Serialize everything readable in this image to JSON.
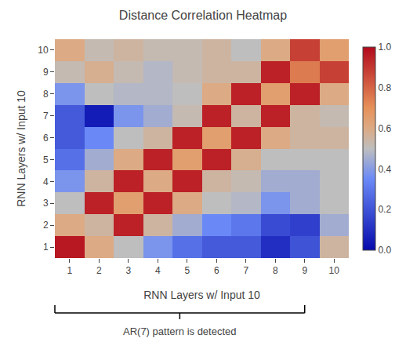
{
  "chart_data": {
    "type": "heatmap",
    "title": "Distance Correlation Heatmap",
    "xlabel": "RNN Layers w/ Input 10",
    "ylabel": "RNN Layers w/ Input 10",
    "annotation": "AR(7) pattern is detected",
    "x": [
      1,
      2,
      3,
      4,
      5,
      6,
      7,
      8,
      9,
      10
    ],
    "y": [
      1,
      2,
      3,
      4,
      5,
      6,
      7,
      8,
      9,
      10
    ],
    "xlim": [
      0.5,
      10.5
    ],
    "ylim": [
      0.5,
      10.5
    ],
    "xticks": [
      1,
      2,
      3,
      4,
      5,
      6,
      7,
      8,
      9,
      10
    ],
    "yticks": [
      1,
      2,
      3,
      4,
      5,
      6,
      7,
      8,
      9,
      10
    ],
    "grid": false,
    "cells": [
      [
        0.97,
        0.6,
        0.5,
        0.38,
        0.28,
        0.22,
        0.22,
        0.1,
        0.2,
        0.55
      ],
      [
        0.6,
        0.55,
        0.95,
        0.55,
        0.45,
        0.35,
        0.3,
        0.18,
        0.15,
        0.45
      ],
      [
        0.5,
        0.95,
        0.65,
        0.95,
        0.6,
        0.5,
        0.48,
        0.38,
        0.45,
        0.5
      ],
      [
        0.38,
        0.55,
        0.95,
        0.6,
        0.95,
        0.55,
        0.52,
        0.45,
        0.45,
        0.5
      ],
      [
        0.28,
        0.45,
        0.6,
        0.95,
        0.65,
        0.95,
        0.58,
        0.5,
        0.5,
        0.5
      ],
      [
        0.22,
        0.35,
        0.5,
        0.55,
        0.95,
        0.65,
        0.95,
        0.6,
        0.55,
        0.55
      ],
      [
        0.22,
        0.05,
        0.38,
        0.45,
        0.52,
        0.95,
        0.55,
        0.95,
        0.55,
        0.52
      ],
      [
        0.38,
        0.5,
        0.48,
        0.48,
        0.5,
        0.6,
        0.95,
        0.65,
        0.95,
        0.6
      ],
      [
        0.52,
        0.58,
        0.52,
        0.48,
        0.52,
        0.55,
        0.55,
        0.95,
        0.75,
        0.88
      ],
      [
        0.6,
        0.52,
        0.55,
        0.52,
        0.52,
        0.55,
        0.5,
        0.6,
        0.88,
        0.65
      ]
    ],
    "color_range": [
      0.0,
      1.0
    ],
    "colorbar_ticks": [
      {
        "value": 0.0,
        "label": "0.0"
      },
      0.2,
      0.4,
      0.6,
      0.8,
      {
        "value": 1.0,
        "label": "1.0"
      }
    ]
  }
}
